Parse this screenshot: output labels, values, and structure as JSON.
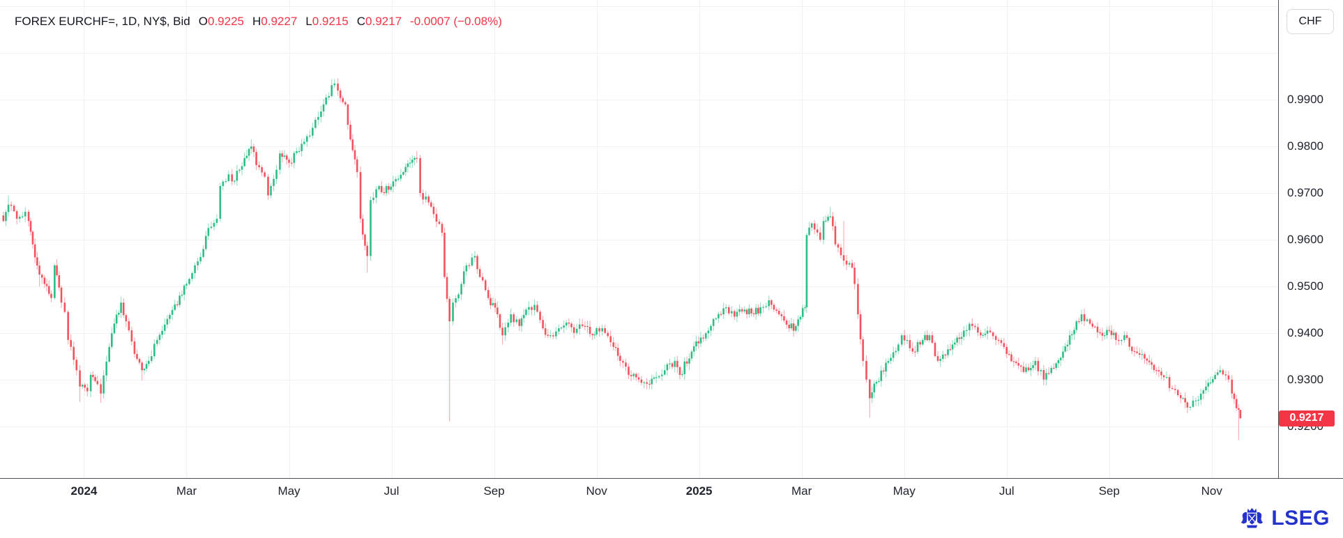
{
  "header": {
    "legend": {
      "symbol": "FOREX EURCHF=, 1D, NY$, Bid",
      "open_label": "O",
      "open": "0.9225",
      "high_label": "H",
      "high": "0.9227",
      "low_label": "L",
      "low": "0.9215",
      "close_label": "C",
      "close": "0.9217",
      "change": "-0.0007 (−0.08%)"
    },
    "currency_button": "CHF"
  },
  "price_axis": {
    "last_price_badge": "0.9217"
  },
  "footer": {
    "brand": "LSEG"
  },
  "colors": {
    "up": "#2ebd85",
    "down": "#f2545f",
    "grid": "#f0f1f3",
    "axis_line": "#4b505b",
    "text": "#131722",
    "value_red": "#f23645",
    "badge_bg": "#f23645",
    "brand_blue": "#2433cc"
  },
  "chart_data": {
    "type": "candlestick",
    "title": "FOREX EURCHF=, 1D, NY$, Bid",
    "interval": "1D",
    "ohlc_last": {
      "open": 0.9225,
      "high": 0.9227,
      "low": 0.9215,
      "close": 0.9217,
      "change": -0.0007,
      "change_pct": "-0.08%"
    },
    "y_axis": {
      "range_top": 1.01141,
      "range_bottom": 0.90887,
      "ticks": [
        {
          "price": 0.99,
          "label": "0.9900"
        },
        {
          "price": 0.98,
          "label": "0.9800"
        },
        {
          "price": 0.97,
          "label": "0.9700"
        },
        {
          "price": 0.96,
          "label": "0.9600"
        },
        {
          "price": 0.95,
          "label": "0.9500"
        },
        {
          "price": 0.94,
          "label": "0.9400"
        },
        {
          "price": 0.93,
          "label": "0.9300"
        },
        {
          "price": 0.92,
          "label": "0.9200"
        }
      ],
      "grid_only": [
        1.0,
        1.01
      ]
    },
    "x_axis": {
      "range": [
        "2023-11-12",
        "2025-12-10"
      ],
      "ticks": [
        {
          "date": "2024-01-01",
          "label": "2024",
          "year": true
        },
        {
          "date": "2024-03-01",
          "label": "Mar"
        },
        {
          "date": "2024-05-01",
          "label": "May"
        },
        {
          "date": "2024-07-01",
          "label": "Jul"
        },
        {
          "date": "2024-09-01",
          "label": "Sep"
        },
        {
          "date": "2024-11-01",
          "label": "Nov"
        },
        {
          "date": "2025-01-01",
          "label": "2025",
          "year": true
        },
        {
          "date": "2025-03-01",
          "label": "Mar"
        },
        {
          "date": "2025-05-01",
          "label": "May"
        },
        {
          "date": "2025-07-01",
          "label": "Jul"
        },
        {
          "date": "2025-09-01",
          "label": "Sep"
        },
        {
          "date": "2025-11-01",
          "label": "Nov"
        }
      ]
    },
    "waypoints": [
      [
        "2023-11-14",
        0.964
      ],
      [
        "2023-11-17",
        0.9675,
        null,
        0.9695
      ],
      [
        "2023-11-22",
        0.9645
      ],
      [
        "2023-11-27",
        0.966
      ],
      [
        "2023-11-29",
        0.964
      ],
      [
        "2023-12-01",
        0.959
      ],
      [
        "2023-12-05",
        0.9525,
        0.95
      ],
      [
        "2023-12-08",
        0.9505
      ],
      [
        "2023-12-12",
        0.9475
      ],
      [
        "2023-12-14",
        0.9545
      ],
      [
        "2023-12-18",
        0.9465
      ],
      [
        "2023-12-20",
        0.9445
      ],
      [
        "2023-12-22",
        0.9385
      ],
      [
        "2023-12-27",
        0.932
      ],
      [
        "2023-12-29",
        0.9285,
        0.9252
      ],
      [
        "2024-01-03",
        0.9275
      ],
      [
        "2024-01-05",
        0.931
      ],
      [
        "2024-01-09",
        0.929
      ],
      [
        "2024-01-11",
        0.927,
        0.925
      ],
      [
        "2024-01-16",
        0.937
      ],
      [
        "2024-01-19",
        0.942
      ],
      [
        "2024-01-23",
        0.9465,
        null,
        0.9478
      ],
      [
        "2024-01-26",
        0.9425
      ],
      [
        "2024-01-31",
        0.9355
      ],
      [
        "2024-02-05",
        0.932,
        0.9298
      ],
      [
        "2024-02-09",
        0.934
      ],
      [
        "2024-02-14",
        0.9385
      ],
      [
        "2024-02-20",
        0.943
      ],
      [
        "2024-02-26",
        0.946
      ],
      [
        "2024-03-01",
        0.9505
      ],
      [
        "2024-03-06",
        0.9545
      ],
      [
        "2024-03-11",
        0.958
      ],
      [
        "2024-03-14",
        0.9625
      ],
      [
        "2024-03-19",
        0.9645
      ],
      [
        "2024-03-21",
        0.9715
      ],
      [
        "2024-03-26",
        0.974
      ],
      [
        "2024-03-28",
        0.9725
      ],
      [
        "2024-04-02",
        0.975
      ],
      [
        "2024-04-05",
        0.9775
      ],
      [
        "2024-04-09",
        0.98,
        null,
        0.9815
      ],
      [
        "2024-04-12",
        0.976
      ],
      [
        "2024-04-17",
        0.9735
      ],
      [
        "2024-04-19",
        0.9695
      ],
      [
        "2024-04-24",
        0.975
      ],
      [
        "2024-04-26",
        0.9785
      ],
      [
        "2024-05-01",
        0.9765
      ],
      [
        "2024-05-07",
        0.979
      ],
      [
        "2024-05-10",
        0.981
      ],
      [
        "2024-05-15",
        0.984
      ],
      [
        "2024-05-20",
        0.9875
      ],
      [
        "2024-05-23",
        0.9905
      ],
      [
        "2024-05-28",
        0.9935,
        null,
        0.9944
      ],
      [
        "2024-05-30",
        0.992
      ],
      [
        "2024-06-04",
        0.989
      ],
      [
        "2024-06-07",
        0.9815
      ],
      [
        "2024-06-11",
        0.9745
      ],
      [
        "2024-06-13",
        0.9645
      ],
      [
        "2024-06-17",
        0.9565,
        0.953
      ],
      [
        "2024-06-19",
        0.9685
      ],
      [
        "2024-06-24",
        0.9715
      ],
      [
        "2024-06-27",
        0.97
      ],
      [
        "2024-07-02",
        0.9725
      ],
      [
        "2024-07-08",
        0.9745
      ],
      [
        "2024-07-12",
        0.9765
      ],
      [
        "2024-07-16",
        0.9775,
        null,
        0.979
      ],
      [
        "2024-07-18",
        0.97
      ],
      [
        "2024-07-23",
        0.968
      ],
      [
        "2024-07-26",
        0.9655
      ],
      [
        "2024-07-31",
        0.9615
      ],
      [
        "2024-08-02",
        0.952
      ],
      [
        "2024-08-05",
        0.9425,
        0.921
      ],
      [
        "2024-08-07",
        0.9465
      ],
      [
        "2024-08-12",
        0.9505
      ],
      [
        "2024-08-15",
        0.9545
      ],
      [
        "2024-08-20",
        0.9565
      ],
      [
        "2024-08-23",
        0.952
      ],
      [
        "2024-08-28",
        0.9475
      ],
      [
        "2024-09-03",
        0.944
      ],
      [
        "2024-09-06",
        0.9395,
        0.9375
      ],
      [
        "2024-09-11",
        0.944
      ],
      [
        "2024-09-16",
        0.9415
      ],
      [
        "2024-09-20",
        0.945
      ],
      [
        "2024-09-25",
        0.946
      ],
      [
        "2024-09-30",
        0.941
      ],
      [
        "2024-10-04",
        0.9395
      ],
      [
        "2024-10-09",
        0.941
      ],
      [
        "2024-10-15",
        0.942
      ],
      [
        "2024-10-18",
        0.94
      ],
      [
        "2024-10-23",
        0.9415
      ],
      [
        "2024-10-29",
        0.9395
      ],
      [
        "2024-11-01",
        0.941
      ],
      [
        "2024-11-06",
        0.94
      ],
      [
        "2024-11-11",
        0.937
      ],
      [
        "2024-11-15",
        0.934
      ],
      [
        "2024-11-20",
        0.931
      ],
      [
        "2024-11-26",
        0.93,
        0.9293
      ],
      [
        "2024-12-02",
        0.929
      ],
      [
        "2024-12-06",
        0.9305
      ],
      [
        "2024-12-11",
        0.932
      ],
      [
        "2024-12-17",
        0.934
      ],
      [
        "2024-12-20",
        0.931
      ],
      [
        "2024-12-27",
        0.936
      ],
      [
        "2025-01-02",
        0.939
      ],
      [
        "2025-01-08",
        0.9415
      ],
      [
        "2025-01-14",
        0.944
      ],
      [
        "2025-01-17",
        0.9455
      ],
      [
        "2025-01-22",
        0.9435
      ],
      [
        "2025-01-28",
        0.945
      ],
      [
        "2025-02-03",
        0.944
      ],
      [
        "2025-02-07",
        0.9455
      ],
      [
        "2025-02-12",
        0.947,
        null,
        0.948
      ],
      [
        "2025-02-18",
        0.944
      ],
      [
        "2025-02-24",
        0.941
      ],
      [
        "2025-02-28",
        0.9415
      ],
      [
        "2025-03-03",
        0.9455
      ],
      [
        "2025-03-04",
        0.961
      ],
      [
        "2025-03-07",
        0.9635
      ],
      [
        "2025-03-12",
        0.96
      ],
      [
        "2025-03-14",
        0.964
      ],
      [
        "2025-03-18",
        0.965,
        null,
        0.967
      ],
      [
        "2025-03-21",
        0.959
      ],
      [
        "2025-03-26",
        0.9555,
        null,
        0.964
      ],
      [
        "2025-03-31",
        0.954
      ],
      [
        "2025-04-02",
        0.9505
      ],
      [
        "2025-04-04",
        0.944
      ],
      [
        "2025-04-07",
        0.934
      ],
      [
        "2025-04-09",
        0.93
      ],
      [
        "2025-04-11",
        0.926,
        0.9218
      ],
      [
        "2025-04-15",
        0.9295
      ],
      [
        "2025-04-22",
        0.934
      ],
      [
        "2025-04-28",
        0.9375
      ],
      [
        "2025-04-30",
        0.9395
      ],
      [
        "2025-05-06",
        0.936
      ],
      [
        "2025-05-12",
        0.9385
      ],
      [
        "2025-05-16",
        0.9395
      ],
      [
        "2025-05-21",
        0.934
      ],
      [
        "2025-05-27",
        0.9365
      ],
      [
        "2025-06-02",
        0.939
      ],
      [
        "2025-06-06",
        0.9405
      ],
      [
        "2025-06-11",
        0.9415
      ],
      [
        "2025-06-16",
        0.9395
      ],
      [
        "2025-06-20",
        0.9405
      ],
      [
        "2025-06-25",
        0.9385
      ],
      [
        "2025-07-01",
        0.9355
      ],
      [
        "2025-07-08",
        0.933
      ],
      [
        "2025-07-14",
        0.932
      ],
      [
        "2025-07-18",
        0.934
      ],
      [
        "2025-07-23",
        0.93,
        0.9288
      ],
      [
        "2025-07-29",
        0.9325
      ],
      [
        "2025-08-04",
        0.936
      ],
      [
        "2025-08-08",
        0.9395
      ],
      [
        "2025-08-12",
        0.9425
      ],
      [
        "2025-08-15",
        0.944,
        null,
        0.945
      ],
      [
        "2025-08-20",
        0.942
      ],
      [
        "2025-08-26",
        0.94
      ],
      [
        "2025-09-01",
        0.9405
      ],
      [
        "2025-09-05",
        0.9385
      ],
      [
        "2025-09-10",
        0.9395
      ],
      [
        "2025-09-16",
        0.936
      ],
      [
        "2025-09-22",
        0.9345
      ],
      [
        "2025-09-29",
        0.932
      ],
      [
        "2025-10-03",
        0.9305
      ],
      [
        "2025-10-08",
        0.928
      ],
      [
        "2025-10-13",
        0.926
      ],
      [
        "2025-10-17",
        0.924,
        0.9228
      ],
      [
        "2025-10-22",
        0.9255
      ],
      [
        "2025-10-28",
        0.9285
      ],
      [
        "2025-11-03",
        0.931
      ],
      [
        "2025-11-06",
        0.932,
        null,
        0.933
      ],
      [
        "2025-11-11",
        0.93
      ],
      [
        "2025-11-13",
        0.927
      ],
      [
        "2025-11-17",
        0.9235,
        0.917
      ],
      [
        "2025-11-18",
        0.9217,
        0.9215,
        0.9227
      ]
    ]
  }
}
